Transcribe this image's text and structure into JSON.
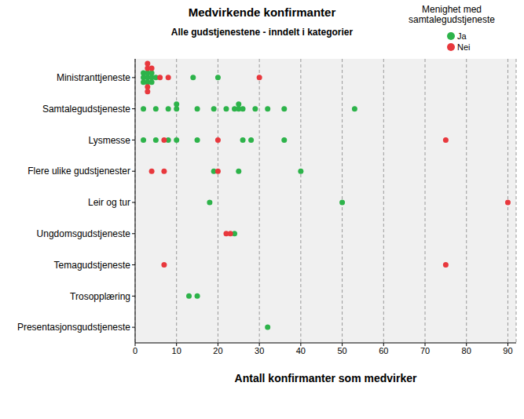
{
  "chart_data": {
    "type": "scatter",
    "title": "Medvirkende konfirmanter",
    "subtitle": "Alle gudstjenestene - inndelt i kategorier",
    "x_label": "Antall konfirmanter som medvirker",
    "legend_title": "Menighet med samtalegudstjeneste",
    "legend": "upper right",
    "grid": true,
    "marker": "circle",
    "categories": [
      "Ministranttjeneste",
      "Samtalegudstjeneste",
      "Lysmesse",
      "Flere ulike gudstjenester",
      "Leir og tur",
      "Ungdomsgudstjeneste",
      "Temagudstjeneste",
      "Trosopplæring",
      "Presentasjonsgudstjeneste"
    ],
    "xlim": [
      0,
      92
    ],
    "xticks": [
      0,
      10,
      20,
      30,
      40,
      50,
      60,
      70,
      80,
      90
    ],
    "series": [
      {
        "name": "Ja",
        "color": "#2db34a",
        "points": [
          {
            "category": "Ministranttjeneste",
            "x": 2
          },
          {
            "category": "Ministranttjeneste",
            "x": 2
          },
          {
            "category": "Ministranttjeneste",
            "x": 2
          },
          {
            "category": "Ministranttjeneste",
            "x": 3
          },
          {
            "category": "Ministranttjeneste",
            "x": 3
          },
          {
            "category": "Ministranttjeneste",
            "x": 3
          },
          {
            "category": "Ministranttjeneste",
            "x": 4
          },
          {
            "category": "Ministranttjeneste",
            "x": 4
          },
          {
            "category": "Ministranttjeneste",
            "x": 4
          },
          {
            "category": "Ministranttjeneste",
            "x": 5
          },
          {
            "category": "Ministranttjeneste",
            "x": 14
          },
          {
            "category": "Ministranttjeneste",
            "x": 20
          },
          {
            "category": "Samtalegudstjeneste",
            "x": 2
          },
          {
            "category": "Samtalegudstjeneste",
            "x": 5
          },
          {
            "category": "Samtalegudstjeneste",
            "x": 8
          },
          {
            "category": "Samtalegudstjeneste",
            "x": 10
          },
          {
            "category": "Samtalegudstjeneste",
            "x": 10
          },
          {
            "category": "Samtalegudstjeneste",
            "x": 15
          },
          {
            "category": "Samtalegudstjeneste",
            "x": 19
          },
          {
            "category": "Samtalegudstjeneste",
            "x": 22
          },
          {
            "category": "Samtalegudstjeneste",
            "x": 24
          },
          {
            "category": "Samtalegudstjeneste",
            "x": 25
          },
          {
            "category": "Samtalegudstjeneste",
            "x": 25
          },
          {
            "category": "Samtalegudstjeneste",
            "x": 26
          },
          {
            "category": "Samtalegudstjeneste",
            "x": 29
          },
          {
            "category": "Samtalegudstjeneste",
            "x": 32
          },
          {
            "category": "Samtalegudstjeneste",
            "x": 36
          },
          {
            "category": "Samtalegudstjeneste",
            "x": 53
          },
          {
            "category": "Lysmesse",
            "x": 2
          },
          {
            "category": "Lysmesse",
            "x": 5
          },
          {
            "category": "Lysmesse",
            "x": 8
          },
          {
            "category": "Lysmesse",
            "x": 10
          },
          {
            "category": "Lysmesse",
            "x": 15
          },
          {
            "category": "Lysmesse",
            "x": 26
          },
          {
            "category": "Lysmesse",
            "x": 28
          },
          {
            "category": "Lysmesse",
            "x": 36
          },
          {
            "category": "Flere ulike gudstjenester",
            "x": 19
          },
          {
            "category": "Flere ulike gudstjenester",
            "x": 25
          },
          {
            "category": "Flere ulike gudstjenester",
            "x": 40
          },
          {
            "category": "Leir og tur",
            "x": 18
          },
          {
            "category": "Leir og tur",
            "x": 50
          },
          {
            "category": "Ungdomsgudstjeneste",
            "x": 24
          },
          {
            "category": "Trosopplæring",
            "x": 13
          },
          {
            "category": "Trosopplæring",
            "x": 15
          },
          {
            "category": "Presentasjonsgudstjeneste",
            "x": 32
          }
        ]
      },
      {
        "name": "Nei",
        "color": "#e8383d",
        "points": [
          {
            "category": "Ministranttjeneste",
            "x": 3
          },
          {
            "category": "Ministranttjeneste",
            "x": 3
          },
          {
            "category": "Ministranttjeneste",
            "x": 3
          },
          {
            "category": "Ministranttjeneste",
            "x": 3
          },
          {
            "category": "Ministranttjeneste",
            "x": 4
          },
          {
            "category": "Ministranttjeneste",
            "x": 6
          },
          {
            "category": "Ministranttjeneste",
            "x": 8
          },
          {
            "category": "Ministranttjeneste",
            "x": 30
          },
          {
            "category": "Lysmesse",
            "x": 7
          },
          {
            "category": "Lysmesse",
            "x": 20
          },
          {
            "category": "Lysmesse",
            "x": 75
          },
          {
            "category": "Flere ulike gudstjenester",
            "x": 4
          },
          {
            "category": "Flere ulike gudstjenester",
            "x": 7
          },
          {
            "category": "Flere ulike gudstjenester",
            "x": 20
          },
          {
            "category": "Leir og tur",
            "x": 90
          },
          {
            "category": "Ungdomsgudstjeneste",
            "x": 22
          },
          {
            "category": "Ungdomsgudstjeneste",
            "x": 23
          },
          {
            "category": "Temagudstjeneste",
            "x": 7
          },
          {
            "category": "Temagudstjeneste",
            "x": 75
          }
        ]
      }
    ]
  }
}
